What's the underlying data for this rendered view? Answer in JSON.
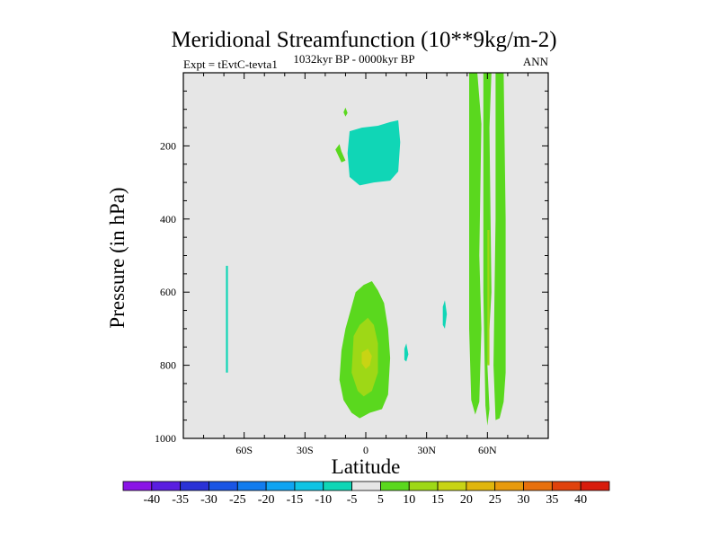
{
  "chart_data": {
    "type": "filled-contour",
    "title": "Meridional Streamfunction (10**9kg/m-2)",
    "left_label": "Expt = tEvtC-tevta1",
    "center_label": "1032kyr BP - 0000kyr BP",
    "right_label": "ANN",
    "xlabel": "Latitude",
    "ylabel": "Pressure (in hPa)",
    "xlim": [
      -90,
      90
    ],
    "ylim": [
      0,
      1000
    ],
    "x_ticks": [
      {
        "value": -60,
        "label": "60S"
      },
      {
        "value": -30,
        "label": "30S"
      },
      {
        "value": 0,
        "label": "0"
      },
      {
        "value": 30,
        "label": "30N"
      },
      {
        "value": 60,
        "label": "60N"
      }
    ],
    "y_ticks": [
      {
        "value": 200,
        "label": "200"
      },
      {
        "value": 400,
        "label": "400"
      },
      {
        "value": 600,
        "label": "600"
      },
      {
        "value": 800,
        "label": "800"
      },
      {
        "value": 1000,
        "label": "1000"
      }
    ],
    "background_color": "#e6e6e6",
    "colorbar": {
      "levels": [
        -40,
        -35,
        -30,
        -25,
        -20,
        -15,
        -10,
        -5,
        5,
        10,
        15,
        20,
        25,
        30,
        35,
        40
      ],
      "labels": [
        "-40",
        "-35",
        "-30",
        "-25",
        "-20",
        "-15",
        "-10",
        "-5",
        "5",
        "10",
        "15",
        "20",
        "25",
        "30",
        "35",
        "40"
      ],
      "colors": [
        "#8a14e6",
        "#5a1ee0",
        "#2a32d6",
        "#1a55e4",
        "#127cee",
        "#10a4f2",
        "#10c4e4",
        "#10d6b6",
        "#e6e6e6",
        "#5ad81e",
        "#9ed816",
        "#c8d414",
        "#e0b60c",
        "#e89a0c",
        "#e8700c",
        "#e0420c",
        "#d81c0c"
      ]
    },
    "regions": [
      {
        "name": "upper-tropics-negative",
        "color": "#10d6b6",
        "points": [
          [
            -8,
            160
          ],
          [
            -2,
            150
          ],
          [
            6,
            145
          ],
          [
            12,
            135
          ],
          [
            16,
            130
          ],
          [
            17,
            190
          ],
          [
            16,
            270
          ],
          [
            12,
            295
          ],
          [
            4,
            300
          ],
          [
            -3,
            308
          ],
          [
            -8,
            285
          ],
          [
            -9,
            220
          ]
        ]
      },
      {
        "name": "upper-south-positive-a",
        "color": "#5ad81e",
        "points": [
          [
            -15,
            210
          ],
          [
            -13,
            195
          ],
          [
            -12,
            215
          ],
          [
            -10,
            240
          ],
          [
            -12,
            245
          ]
        ]
      },
      {
        "name": "upper-south-positive-b",
        "color": "#5ad81e",
        "points": [
          [
            -11,
            108
          ],
          [
            -10,
            95
          ],
          [
            -9,
            110
          ],
          [
            -10,
            120
          ]
        ]
      },
      {
        "name": "southern-negative-band",
        "color": "#10d6b6",
        "points": [
          [
            -69,
            528
          ],
          [
            -68,
            528
          ],
          [
            -68,
            820
          ],
          [
            -69,
            820
          ]
        ]
      },
      {
        "name": "northern-negative-strip-a",
        "color": "#10d6b6",
        "points": [
          [
            38,
            640
          ],
          [
            39,
            622
          ],
          [
            40,
            660
          ],
          [
            39,
            700
          ],
          [
            38,
            690
          ]
        ]
      },
      {
        "name": "northern-negative-strip-b",
        "color": "#10d6b6",
        "points": [
          [
            19,
            755
          ],
          [
            20,
            740
          ],
          [
            21,
            770
          ],
          [
            20,
            790
          ],
          [
            19,
            785
          ]
        ]
      },
      {
        "name": "tropical-positive-outer",
        "color": "#5ad81e",
        "points": [
          [
            -7,
            640
          ],
          [
            -5,
            600
          ],
          [
            -1,
            580
          ],
          [
            3,
            570
          ],
          [
            6,
            595
          ],
          [
            9,
            630
          ],
          [
            11,
            700
          ],
          [
            12,
            780
          ],
          [
            11,
            880
          ],
          [
            8,
            920
          ],
          [
            2,
            930
          ],
          [
            -3,
            945
          ],
          [
            -7,
            930
          ],
          [
            -11,
            895
          ],
          [
            -13,
            840
          ],
          [
            -12,
            760
          ],
          [
            -10,
            700
          ]
        ]
      },
      {
        "name": "tropical-positive-mid",
        "color": "#9ed816",
        "points": [
          [
            -6,
            720
          ],
          [
            -3,
            690
          ],
          [
            1,
            670
          ],
          [
            4,
            690
          ],
          [
            6,
            740
          ],
          [
            6,
            820
          ],
          [
            3,
            870
          ],
          [
            -1,
            885
          ],
          [
            -4,
            870
          ],
          [
            -7,
            820
          ]
        ]
      },
      {
        "name": "tropical-positive-core",
        "color": "#c8d414",
        "points": [
          [
            -2,
            765
          ],
          [
            1,
            755
          ],
          [
            3,
            775
          ],
          [
            2,
            800
          ],
          [
            0,
            810
          ],
          [
            -2,
            795
          ]
        ]
      },
      {
        "name": "nh-band-1-outer",
        "color": "#5ad81e",
        "points": [
          [
            51,
            0
          ],
          [
            55,
            0
          ],
          [
            57,
            140
          ],
          [
            56,
            500
          ],
          [
            57,
            700
          ],
          [
            56,
            900
          ],
          [
            54,
            935
          ],
          [
            52,
            895
          ],
          [
            51,
            700
          ]
        ]
      },
      {
        "name": "nh-band-2-outer",
        "color": "#5ad81e",
        "points": [
          [
            58,
            0
          ],
          [
            62,
            0
          ],
          [
            61,
            150
          ],
          [
            62,
            600
          ],
          [
            60,
            800
          ],
          [
            61,
            920
          ],
          [
            60,
            965
          ],
          [
            59,
            910
          ],
          [
            58,
            600
          ]
        ]
      },
      {
        "name": "nh-band-3-outer",
        "color": "#5ad81e",
        "points": [
          [
            64,
            0
          ],
          [
            68,
            0
          ],
          [
            69,
            400
          ],
          [
            69,
            820
          ],
          [
            68,
            900
          ],
          [
            66,
            945
          ],
          [
            64,
            950
          ],
          [
            63,
            800
          ],
          [
            64,
            400
          ]
        ]
      },
      {
        "name": "nh-band-2-core",
        "color": "#9ed816",
        "points": [
          [
            60,
            430
          ],
          [
            61,
            430
          ],
          [
            61,
            800
          ],
          [
            60,
            800
          ]
        ]
      }
    ]
  }
}
